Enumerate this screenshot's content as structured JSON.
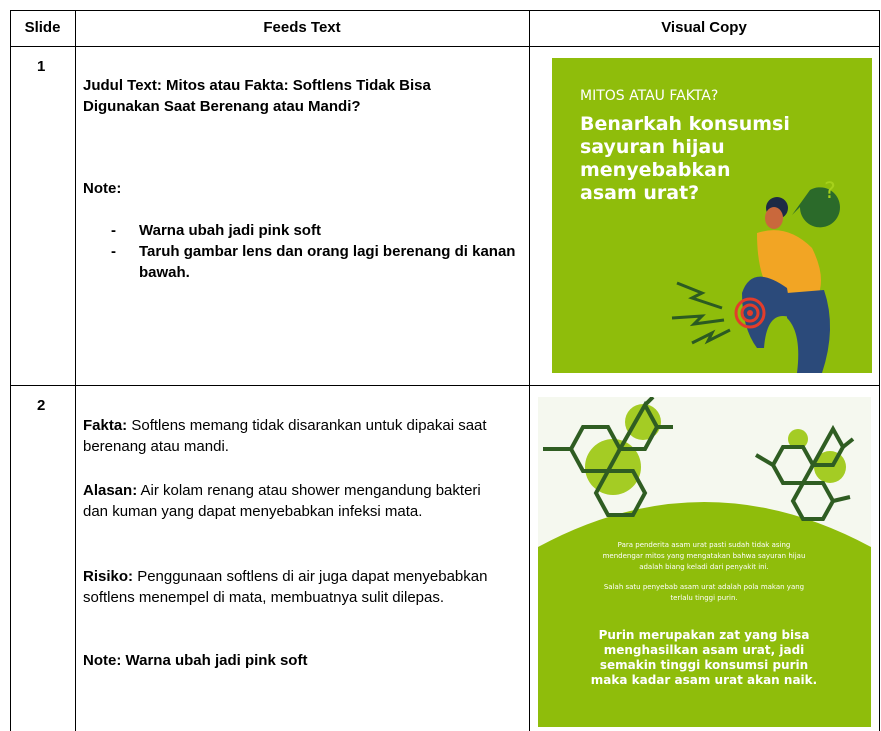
{
  "table": {
    "headers": [
      "Slide",
      "Feeds Text",
      "Visual Copy"
    ],
    "rows": [
      {
        "slide": "1",
        "feeds": {
          "title": "Judul Text: Mitos atau Fakta: Softlens Tidak Bisa Digunakan Saat Berenang atau Mandi?",
          "note": "Note:",
          "bullets": [
            "Warna ubah jadi pink soft",
            "Taruh gambar lens dan orang lagi berenang di kanan bawah."
          ]
        },
        "visual": {
          "kicker": "MITOS ATAU FAKTA?",
          "headline": [
            "Benarkah konsumsi",
            "sayuran hijau",
            "menyebabkan",
            "asam urat?"
          ],
          "bubble": "?"
        }
      },
      {
        "slide": "2",
        "feeds": {
          "paragraphs": [
            {
              "label": "Fakta:",
              "text": "Softlens memang tidak disarankan untuk dipakai saat berenang atau mandi."
            },
            {
              "label": "Alasan:",
              "text": "Air kolam renang atau shower mengandung bakteri dan kuman yang dapat menyebabkan infeksi mata."
            },
            {
              "label": "Risiko:",
              "text": "Penggunaan softlens di air juga dapat menyebabkan softlens menempel di mata, membuatnya sulit dilepas."
            }
          ],
          "note": "Note: Warna ubah jadi pink soft"
        },
        "visual": {
          "small_text": [
            "Para penderita asam urat pasti sudah tidak asing",
            "mendengar mitos yang mengatakan bahwa sayuran hijau",
            "adalah biang keladi dari penyakit ini.",
            "Salah satu penyebab asam urat adalah pola makan yang",
            "terlalu tinggi purin."
          ],
          "bold_text": [
            "Purin merupakan zat yang bisa",
            "menghasilkan asam urat, jadi",
            "semakin tinggi konsumsi purin",
            "maka kadar asam urat akan naik."
          ]
        }
      }
    ]
  }
}
